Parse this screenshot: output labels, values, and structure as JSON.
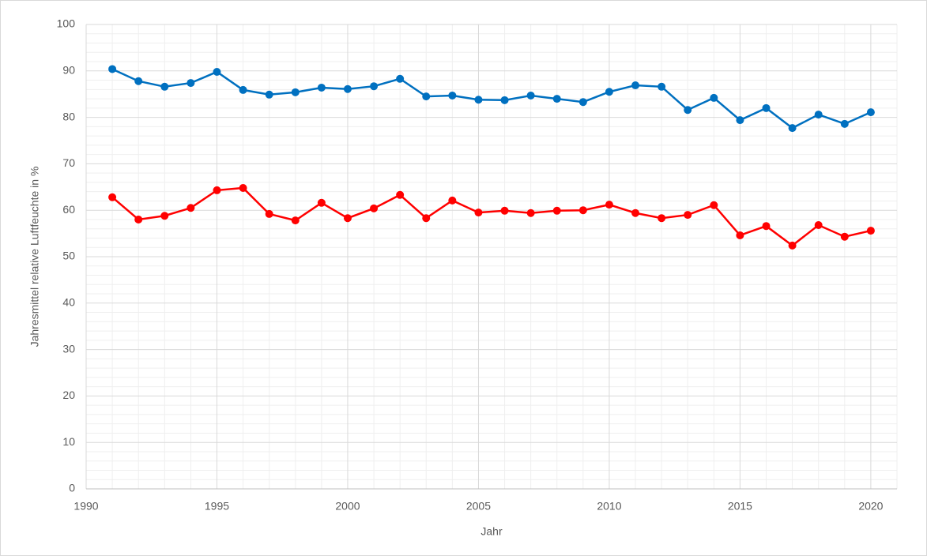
{
  "chart_data": {
    "type": "line",
    "xlabel": "Jahr",
    "ylabel": "Jahresmittel relative Luftfeuchte in %",
    "x": [
      1991,
      1992,
      1993,
      1994,
      1995,
      1996,
      1997,
      1998,
      1999,
      2000,
      2001,
      2002,
      2003,
      2004,
      2005,
      2006,
      2007,
      2008,
      2009,
      2010,
      2011,
      2012,
      2013,
      2014,
      2015,
      2016,
      2017,
      2018,
      2019,
      2020
    ],
    "series": [
      {
        "color": "#0070c0",
        "values": [
          90.4,
          87.8,
          86.6,
          87.4,
          89.8,
          85.9,
          84.9,
          85.4,
          86.4,
          86.1,
          86.7,
          88.3,
          84.5,
          84.7,
          83.8,
          83.7,
          84.7,
          84.0,
          83.3,
          85.5,
          86.9,
          86.6,
          81.6,
          84.2,
          79.4,
          82.0,
          77.7,
          80.6,
          78.6,
          81.1
        ]
      },
      {
        "color": "#ff0000",
        "values": [
          62.8,
          58.0,
          58.8,
          60.5,
          64.3,
          64.8,
          59.2,
          57.8,
          61.6,
          58.3,
          60.4,
          63.3,
          58.3,
          62.1,
          59.5,
          59.9,
          59.4,
          59.9,
          60.0,
          61.2,
          59.4,
          58.3,
          59.0,
          61.1,
          54.6,
          56.6,
          52.4,
          56.8,
          54.3,
          55.6
        ]
      }
    ],
    "xlim": [
      1990,
      2021
    ],
    "xticks": [
      1990,
      1995,
      2000,
      2005,
      2010,
      2015,
      2020
    ],
    "ylim": [
      0,
      100
    ],
    "yticks": [
      0,
      10,
      20,
      30,
      40,
      50,
      60,
      70,
      80,
      90,
      100
    ],
    "grid": true,
    "minor_grid": true
  }
}
